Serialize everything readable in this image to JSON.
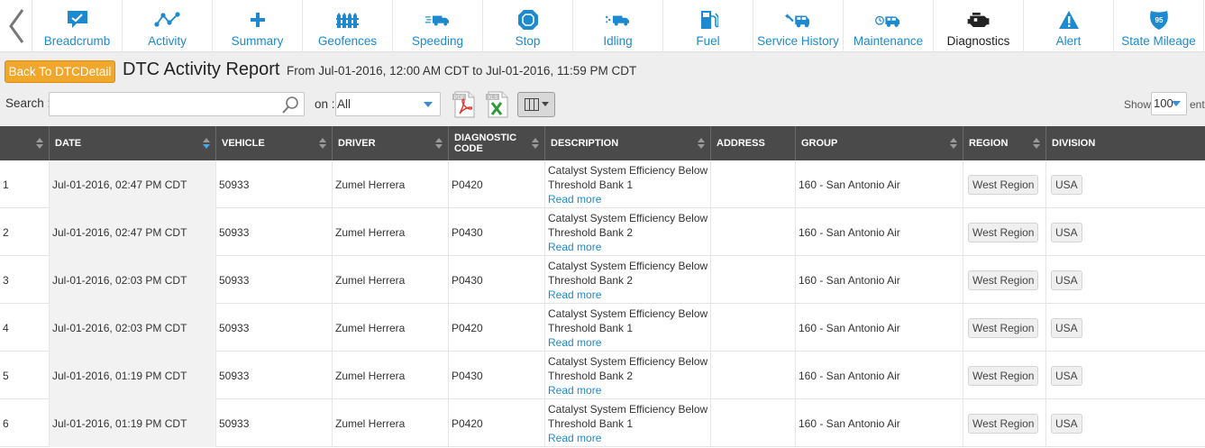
{
  "nav": {
    "items": [
      {
        "label": "Breadcrumb",
        "icon": "breadcrumb-icon",
        "active": false
      },
      {
        "label": "Activity",
        "icon": "activity-icon",
        "active": false
      },
      {
        "label": "Summary",
        "icon": "summary-plus-icon",
        "active": false
      },
      {
        "label": "Geofences",
        "icon": "geofence-icon",
        "active": false
      },
      {
        "label": "Speeding",
        "icon": "speeding-truck-icon",
        "active": false
      },
      {
        "label": "Stop",
        "icon": "stop-hexagon-icon",
        "active": false
      },
      {
        "label": "Idling",
        "icon": "idling-truck-icon",
        "active": false
      },
      {
        "label": "Fuel",
        "icon": "fuel-pump-icon",
        "active": false
      },
      {
        "label": "Service History",
        "icon": "service-truck-icon",
        "active": false
      },
      {
        "label": "Maintenance",
        "icon": "maintenance-truck-icon",
        "active": false
      },
      {
        "label": "Diagnostics",
        "icon": "engine-icon",
        "active": true
      },
      {
        "label": "Alert",
        "icon": "alert-triangle-icon",
        "active": false
      },
      {
        "label": "State Mileage",
        "icon": "interstate-shield-icon",
        "active": false
      }
    ],
    "shield_number": "95"
  },
  "header": {
    "back_button": "Back To DTCDetail",
    "title": "DTC Activity Report",
    "range": "From Jul-01-2016, 12:00 AM CDT to Jul-01-2016, 11:59 PM CDT"
  },
  "toolbar": {
    "search_label": "Search :",
    "search_value": "",
    "on_label": "on :",
    "on_value": "All",
    "pdf_label": "PDF",
    "xls_label": "XLS",
    "show_label": "Show",
    "show_value": "100",
    "entries_label": "entries"
  },
  "table": {
    "columns": [
      "",
      "DATE",
      "VEHICLE",
      "DRIVER",
      "DIAGNOSTIC CODE",
      "DESCRIPTION",
      "ADDRESS",
      "GROUP",
      "REGION",
      "DIVISION"
    ],
    "read_more": "Read more",
    "rows": [
      {
        "n": "1",
        "date": "Jul-01-2016, 02:47 PM CDT",
        "vehicle": "50933",
        "driver": "Zumel Herrera",
        "code": "P0420",
        "description": "Catalyst System Efficiency Below Threshold Bank 1",
        "address": "",
        "group": "160 - San Antonio Air",
        "region": "West Region",
        "division": "USA"
      },
      {
        "n": "2",
        "date": "Jul-01-2016, 02:47 PM CDT",
        "vehicle": "50933",
        "driver": "Zumel Herrera",
        "code": "P0430",
        "description": "Catalyst System Efficiency Below Threshold Bank 2",
        "address": "",
        "group": "160 - San Antonio Air",
        "region": "West Region",
        "division": "USA"
      },
      {
        "n": "3",
        "date": "Jul-01-2016, 02:03 PM CDT",
        "vehicle": "50933",
        "driver": "Zumel Herrera",
        "code": "P0430",
        "description": "Catalyst System Efficiency Below Threshold Bank 2",
        "address": "",
        "group": "160 - San Antonio Air",
        "region": "West Region",
        "division": "USA"
      },
      {
        "n": "4",
        "date": "Jul-01-2016, 02:03 PM CDT",
        "vehicle": "50933",
        "driver": "Zumel Herrera",
        "code": "P0420",
        "description": "Catalyst System Efficiency Below Threshold Bank 1",
        "address": "",
        "group": "160 - San Antonio Air",
        "region": "West Region",
        "division": "USA"
      },
      {
        "n": "5",
        "date": "Jul-01-2016, 01:19 PM CDT",
        "vehicle": "50933",
        "driver": "Zumel Herrera",
        "code": "P0430",
        "description": "Catalyst System Efficiency Below Threshold Bank 2",
        "address": "",
        "group": "160 - San Antonio Air",
        "region": "West Region",
        "division": "USA"
      },
      {
        "n": "6",
        "date": "Jul-01-2016, 01:19 PM CDT",
        "vehicle": "50933",
        "driver": "Zumel Herrera",
        "code": "P0420",
        "description": "Catalyst System Efficiency Below Threshold Bank 1",
        "address": "",
        "group": "160 - San Antonio Air",
        "region": "West Region",
        "division": "USA"
      }
    ]
  },
  "colors": {
    "accent_blue": "#1d8ad0",
    "back_button": "#f0a72b",
    "header_bg": "#4a4a4a",
    "toolbar_bg": "#eeeeee"
  }
}
